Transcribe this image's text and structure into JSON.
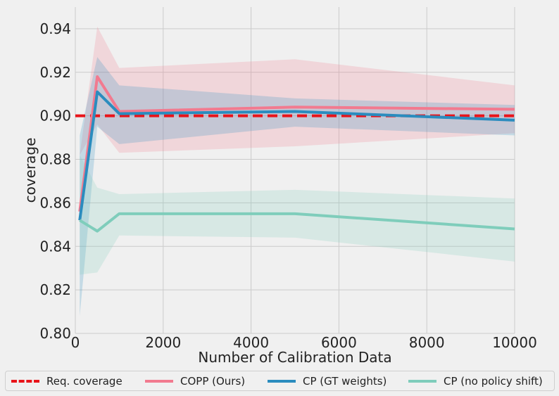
{
  "chart_data": {
    "type": "line",
    "xlabel": "Number of Calibration Data",
    "ylabel": "coverage",
    "xlim": [
      0,
      10000
    ],
    "ylim": [
      0.8,
      0.95
    ],
    "x_ticks": [
      0,
      2000,
      4000,
      6000,
      8000,
      10000
    ],
    "x_tick_labels": [
      "0",
      "2000",
      "4000",
      "6000",
      "8000",
      "10000"
    ],
    "y_ticks": [
      0.8,
      0.82,
      0.84,
      0.86,
      0.88,
      0.9,
      0.92,
      0.94
    ],
    "y_tick_labels": [
      "0.80",
      "0.82",
      "0.84",
      "0.86",
      "0.88",
      "0.90",
      "0.92",
      "0.94"
    ],
    "grid": true,
    "legend_position": "bottom",
    "reference_line": {
      "name": "Req. coverage",
      "y": 0.9,
      "color": "#e8141a",
      "style": "dashed"
    },
    "x": [
      100,
      500,
      1000,
      5000,
      10000
    ],
    "series": [
      {
        "name": "COPP (Ours)",
        "color": "#f27a8f",
        "values": [
          0.856,
          0.918,
          0.902,
          0.904,
          0.903
        ],
        "lower": [
          0.882,
          0.896,
          0.883,
          0.886,
          0.892
        ],
        "upper": [
          0.882,
          0.941,
          0.922,
          0.926,
          0.914
        ]
      },
      {
        "name": "CP (GT weights)",
        "color": "#2b8cbe",
        "values": [
          0.852,
          0.911,
          0.901,
          0.902,
          0.898
        ],
        "lower": [
          0.808,
          0.895,
          0.887,
          0.895,
          0.891
        ],
        "upper": [
          0.891,
          0.927,
          0.914,
          0.908,
          0.905
        ]
      },
      {
        "name": "CP (no policy shift)",
        "color": "#7fcdbb",
        "values": [
          0.852,
          0.847,
          0.855,
          0.855,
          0.848
        ],
        "lower": [
          0.827,
          0.828,
          0.845,
          0.844,
          0.833
        ],
        "upper": [
          0.882,
          0.867,
          0.864,
          0.866,
          0.862
        ]
      }
    ]
  },
  "legend": {
    "items": [
      {
        "label": "Req. coverage"
      },
      {
        "label": "COPP (Ours)"
      },
      {
        "label": "CP (GT weights)"
      },
      {
        "label": "CP (no policy shift)"
      }
    ]
  }
}
